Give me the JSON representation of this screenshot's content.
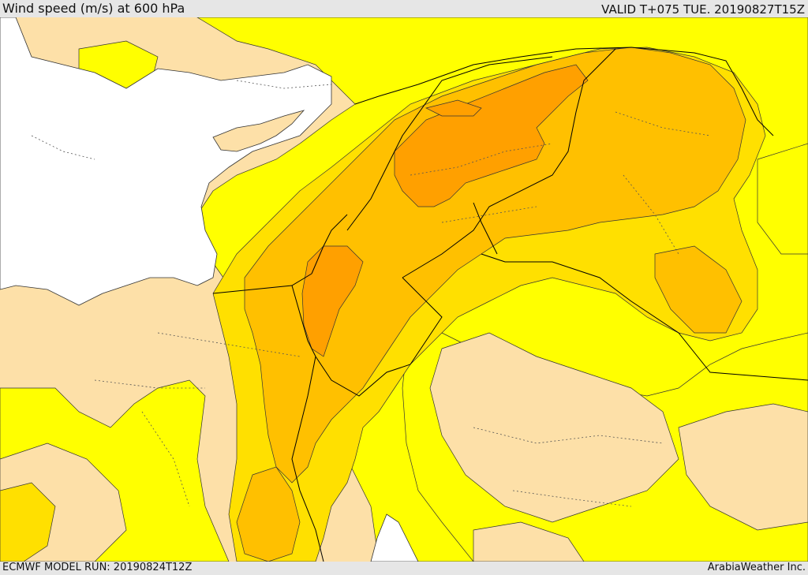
{
  "header": {
    "title": "Wind speed (m/s) at 600 hPa",
    "valid_time": "VALID T+075 TUE. 20190827T15Z"
  },
  "footer": {
    "model_run": "ECMWF MODEL RUN: 20190824T12Z",
    "credit": "ArabiaWeather Inc."
  },
  "map": {
    "variable": "wind speed",
    "units": "m/s",
    "level": "600 hPa",
    "colors": {
      "sea": "#ffffff",
      "weakest": "#fde0a8",
      "weak": "#ffff00",
      "moderate": "#ffe000",
      "strong": "#ffc000",
      "strongest": "#ffa000",
      "contour": "#333333",
      "border": "#000000"
    }
  }
}
